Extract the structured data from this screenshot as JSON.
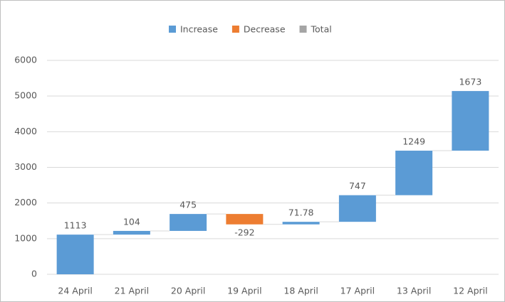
{
  "chart_data": {
    "type": "waterfall",
    "categories": [
      "24 April",
      "21 April",
      "20 April",
      "19 April",
      "18 April",
      "17 April",
      "13 April",
      "12 April"
    ],
    "values": [
      1113,
      104,
      475,
      -292,
      71.78,
      747,
      1249,
      1673
    ],
    "legend": [
      {
        "name": "Increase",
        "color": "#5b9bd5"
      },
      {
        "name": "Decrease",
        "color": "#ed7d31"
      },
      {
        "name": "Total",
        "color": "#a5a5a5"
      }
    ],
    "ylim": [
      0,
      6000
    ],
    "yticks": [
      0,
      1000,
      2000,
      3000,
      4000,
      5000,
      6000
    ],
    "grid": true
  }
}
